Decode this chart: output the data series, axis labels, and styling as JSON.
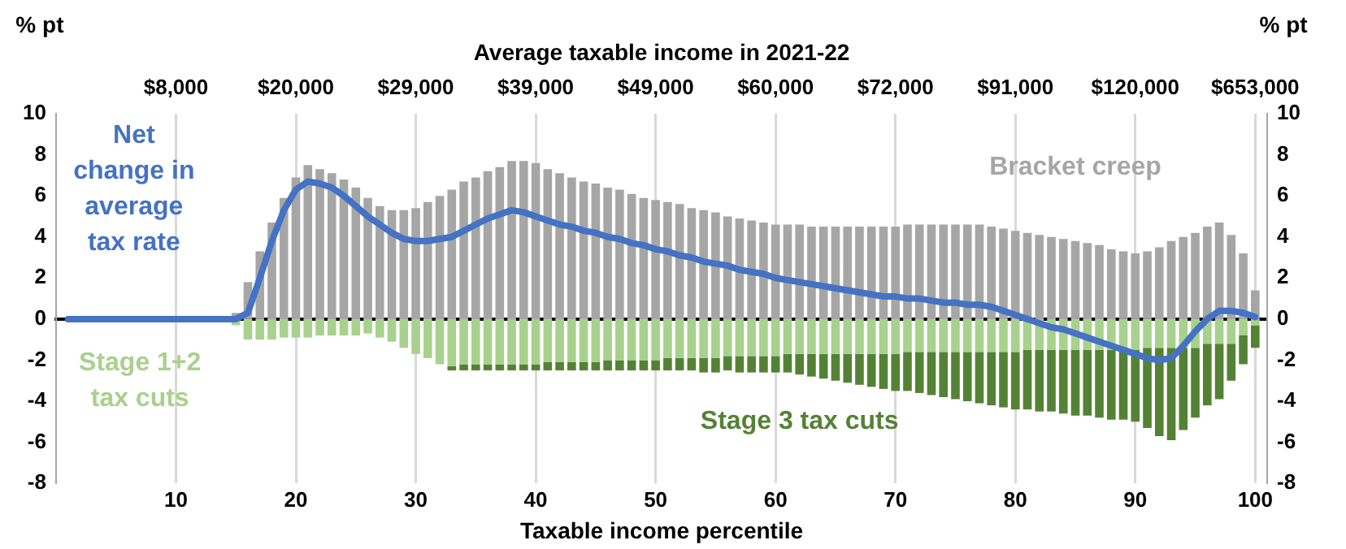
{
  "chart_data": {
    "type": "bar",
    "stacked": true,
    "xlabel": "Taxable income percentile",
    "x2label": "Average taxable income in 2021-22",
    "ylabel": "% pt",
    "y2label": "% pt",
    "x": [
      1,
      2,
      3,
      4,
      5,
      6,
      7,
      8,
      9,
      10,
      11,
      12,
      13,
      14,
      15,
      16,
      17,
      18,
      19,
      20,
      21,
      22,
      23,
      24,
      25,
      26,
      27,
      28,
      29,
      30,
      31,
      32,
      33,
      34,
      35,
      36,
      37,
      38,
      39,
      40,
      41,
      42,
      43,
      44,
      45,
      46,
      47,
      48,
      49,
      50,
      51,
      52,
      53,
      54,
      55,
      56,
      57,
      58,
      59,
      60,
      61,
      62,
      63,
      64,
      65,
      66,
      67,
      68,
      69,
      70,
      71,
      72,
      73,
      74,
      75,
      76,
      77,
      78,
      79,
      80,
      81,
      82,
      83,
      84,
      85,
      86,
      87,
      88,
      89,
      90,
      91,
      92,
      93,
      94,
      95,
      96,
      97,
      98,
      99,
      100
    ],
    "xlim": [
      0,
      101
    ],
    "xticks": [
      10,
      20,
      30,
      40,
      50,
      60,
      70,
      80,
      90,
      100
    ],
    "annotations": [
      "$8,000",
      "$20,000",
      "$29,000",
      "$39,000",
      "$49,000",
      "$60,000",
      "$72,000",
      "$91,000",
      "$120,000",
      "$653,000"
    ],
    "ylim": [
      -8,
      10
    ],
    "yticks": [
      -8,
      -6,
      -4,
      -2,
      0,
      2,
      4,
      6,
      8,
      10
    ],
    "y2lim": [
      -8,
      10
    ],
    "y2ticks": [
      -8,
      -6,
      -4,
      -2,
      0,
      2,
      4,
      6,
      8,
      10
    ],
    "grid": "x",
    "legend": false,
    "series": [
      {
        "name": "Bracket creep",
        "color": "#a6a6a6",
        "values": [
          0,
          0,
          0,
          0,
          0,
          0,
          0,
          0,
          0,
          0,
          0,
          0,
          0,
          0,
          0.3,
          1.8,
          3.3,
          4.7,
          5.9,
          6.9,
          7.5,
          7.3,
          7.1,
          6.8,
          6.4,
          5.9,
          5.5,
          5.3,
          5.3,
          5.4,
          5.7,
          6.0,
          6.3,
          6.7,
          6.9,
          7.2,
          7.4,
          7.7,
          7.7,
          7.6,
          7.3,
          7.1,
          6.9,
          6.7,
          6.6,
          6.4,
          6.3,
          6.1,
          5.9,
          5.8,
          5.7,
          5.6,
          5.4,
          5.3,
          5.2,
          5.0,
          4.9,
          4.8,
          4.7,
          4.6,
          4.6,
          4.6,
          4.5,
          4.5,
          4.5,
          4.5,
          4.5,
          4.5,
          4.5,
          4.5,
          4.6,
          4.6,
          4.6,
          4.6,
          4.6,
          4.6,
          4.6,
          4.5,
          4.4,
          4.3,
          4.2,
          4.1,
          4.0,
          3.9,
          3.8,
          3.7,
          3.6,
          3.4,
          3.3,
          3.2,
          3.3,
          3.5,
          3.8,
          4.0,
          4.2,
          4.5,
          4.7,
          4.1,
          3.2,
          1.4
        ]
      },
      {
        "name": "Stage 1+2 tax cuts",
        "color": "#a9d18e",
        "values": [
          0,
          0,
          0,
          0,
          0,
          0,
          0,
          0,
          0,
          0,
          0,
          0,
          0,
          0,
          -0.3,
          -1.0,
          -1.0,
          -1.0,
          -0.9,
          -0.9,
          -0.9,
          -0.8,
          -0.8,
          -0.8,
          -0.8,
          -0.7,
          -0.9,
          -1.1,
          -1.4,
          -1.7,
          -1.9,
          -2.2,
          -2.3,
          -2.2,
          -2.2,
          -2.2,
          -2.2,
          -2.2,
          -2.2,
          -2.2,
          -2.1,
          -2.1,
          -2.1,
          -2.1,
          -2.1,
          -2.0,
          -2.0,
          -2.0,
          -2.0,
          -2.0,
          -1.9,
          -1.9,
          -1.9,
          -1.9,
          -1.9,
          -1.8,
          -1.8,
          -1.8,
          -1.8,
          -1.8,
          -1.7,
          -1.7,
          -1.7,
          -1.7,
          -1.7,
          -1.7,
          -1.7,
          -1.7,
          -1.7,
          -1.7,
          -1.6,
          -1.6,
          -1.6,
          -1.6,
          -1.6,
          -1.6,
          -1.6,
          -1.6,
          -1.6,
          -1.6,
          -1.5,
          -1.5,
          -1.5,
          -1.5,
          -1.5,
          -1.5,
          -1.5,
          -1.5,
          -1.5,
          -1.5,
          -1.4,
          -1.4,
          -1.4,
          -1.4,
          -1.4,
          -1.2,
          -1.2,
          -1.2,
          -0.8,
          -0.3
        ]
      },
      {
        "name": "Stage 3 tax cuts",
        "color": "#548235",
        "values": [
          0,
          0,
          0,
          0,
          0,
          0,
          0,
          0,
          0,
          0,
          0,
          0,
          0,
          0,
          0,
          0,
          0,
          0,
          0,
          0,
          0,
          0,
          0,
          0,
          0,
          0,
          0,
          0,
          0,
          0,
          0,
          0,
          -0.2,
          -0.3,
          -0.3,
          -0.3,
          -0.3,
          -0.3,
          -0.3,
          -0.3,
          -0.4,
          -0.4,
          -0.4,
          -0.4,
          -0.4,
          -0.5,
          -0.5,
          -0.5,
          -0.5,
          -0.5,
          -0.6,
          -0.6,
          -0.6,
          -0.7,
          -0.7,
          -0.7,
          -0.8,
          -0.8,
          -0.8,
          -0.8,
          -0.9,
          -1.0,
          -1.1,
          -1.2,
          -1.3,
          -1.4,
          -1.5,
          -1.6,
          -1.7,
          -1.8,
          -1.9,
          -2.0,
          -2.1,
          -2.2,
          -2.3,
          -2.4,
          -2.5,
          -2.6,
          -2.7,
          -2.8,
          -2.9,
          -3.0,
          -3.0,
          -3.1,
          -3.2,
          -3.2,
          -3.3,
          -3.4,
          -3.4,
          -3.5,
          -3.9,
          -4.3,
          -4.5,
          -4.0,
          -3.4,
          -3.0,
          -2.7,
          -1.8,
          -1.4,
          -1.1
        ]
      },
      {
        "name": "Net change in average tax rate",
        "type": "line",
        "color": "#4472c4",
        "values": [
          0,
          0,
          0,
          0,
          0,
          0,
          0,
          0,
          0,
          0,
          0,
          0,
          0,
          0,
          0,
          0.3,
          2.0,
          3.8,
          5.3,
          6.3,
          6.7,
          6.6,
          6.4,
          6.0,
          5.5,
          5.0,
          4.6,
          4.2,
          3.9,
          3.8,
          3.8,
          3.9,
          4.0,
          4.3,
          4.6,
          4.9,
          5.1,
          5.3,
          5.2,
          5.0,
          4.8,
          4.6,
          4.5,
          4.3,
          4.2,
          4.0,
          3.9,
          3.7,
          3.6,
          3.4,
          3.3,
          3.1,
          3.0,
          2.8,
          2.7,
          2.6,
          2.4,
          2.3,
          2.2,
          2.0,
          1.9,
          1.8,
          1.7,
          1.6,
          1.5,
          1.4,
          1.3,
          1.2,
          1.1,
          1.1,
          1.0,
          1.0,
          0.9,
          0.8,
          0.8,
          0.7,
          0.7,
          0.6,
          0.4,
          0.2,
          0.0,
          -0.2,
          -0.4,
          -0.5,
          -0.7,
          -0.9,
          -1.1,
          -1.3,
          -1.5,
          -1.7,
          -1.9,
          -2.0,
          -1.9,
          -1.3,
          -0.6,
          0.0,
          0.4,
          0.4,
          0.3,
          0.1
        ]
      }
    ]
  }
}
